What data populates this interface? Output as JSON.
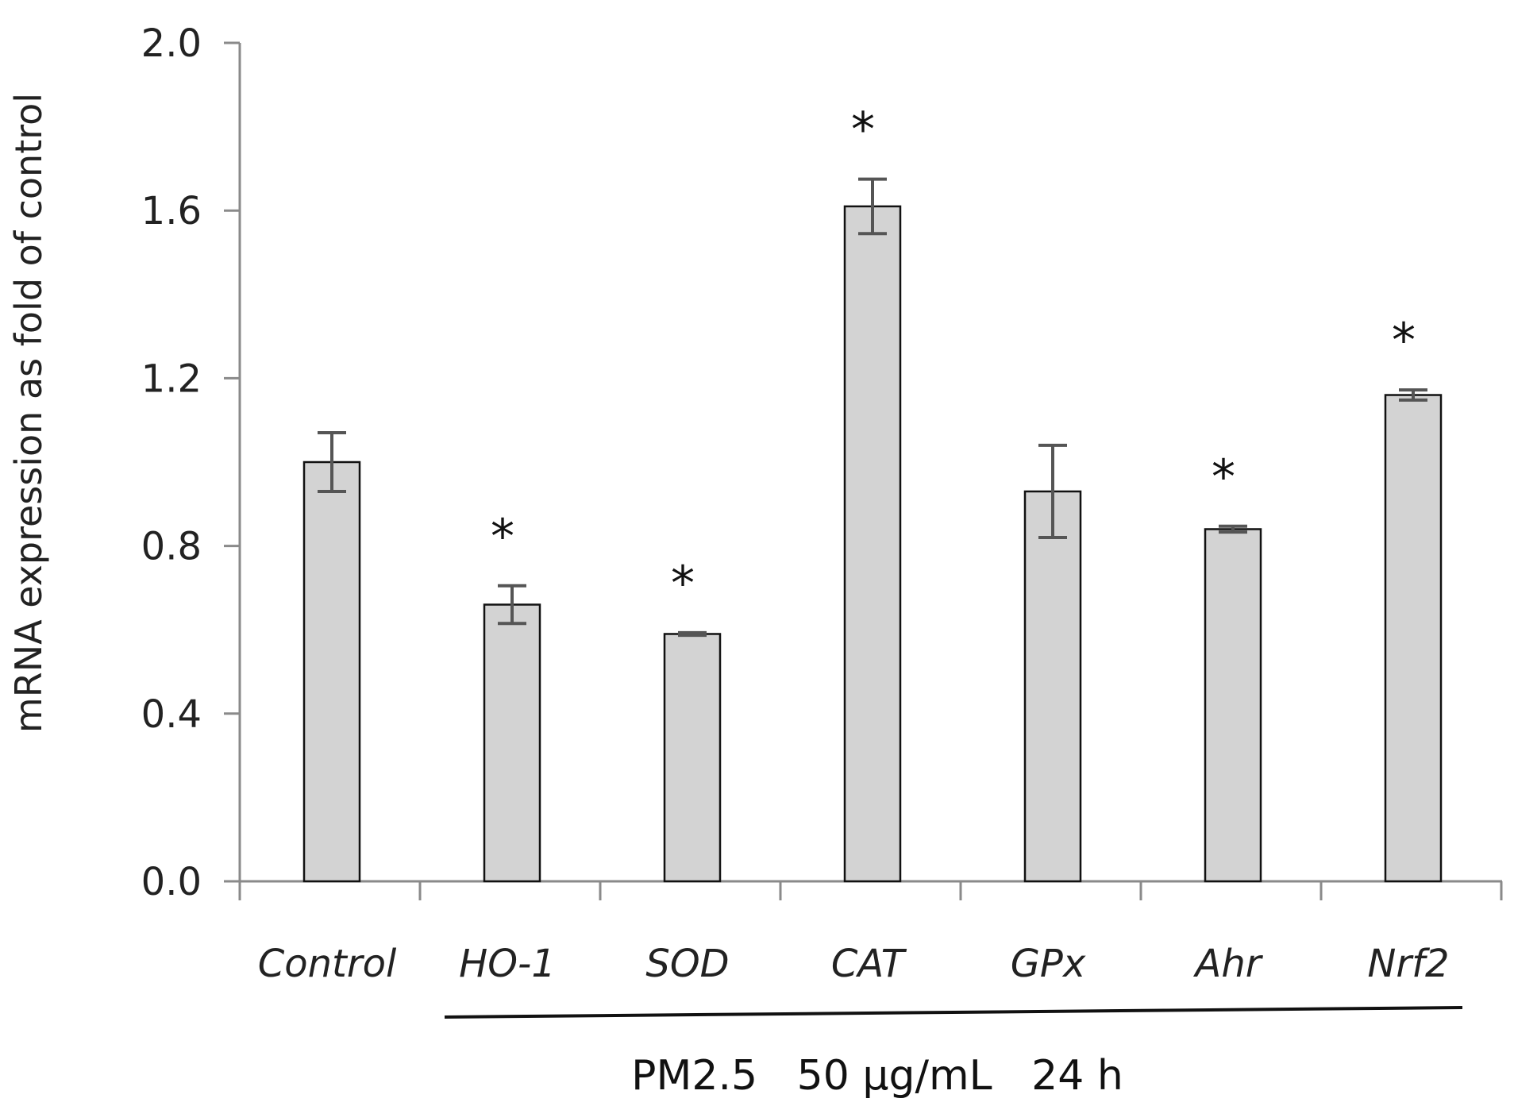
{
  "chart_data": {
    "type": "bar",
    "title": "",
    "xlabel": "",
    "ylabel": "mRNA expression as fold of control",
    "categories": [
      "Control",
      "HO-1",
      "SOD",
      "CAT",
      "GPx",
      "Ahr",
      "Nrf2"
    ],
    "values": [
      1.0,
      0.66,
      0.59,
      1.61,
      0.93,
      0.84,
      1.16
    ],
    "errors": [
      0.07,
      0.045,
      0.003,
      0.065,
      0.11,
      0.007,
      0.012
    ],
    "significant": [
      false,
      true,
      true,
      true,
      false,
      true,
      true
    ],
    "significance_marker": "*",
    "ylim": [
      0.0,
      2.0
    ],
    "yticks": [
      "0.0",
      "0.4",
      "0.8",
      "1.2",
      "1.6",
      "2.0"
    ],
    "ytick_values": [
      0.0,
      0.4,
      0.8,
      1.2,
      1.6,
      2.0
    ],
    "grid": false,
    "bar_color": "#d3d3d3",
    "bar_edge_color": "#111111",
    "error_bar_color": "#555555",
    "group_label": "PM2.5   50 µg/mL   24 h"
  }
}
